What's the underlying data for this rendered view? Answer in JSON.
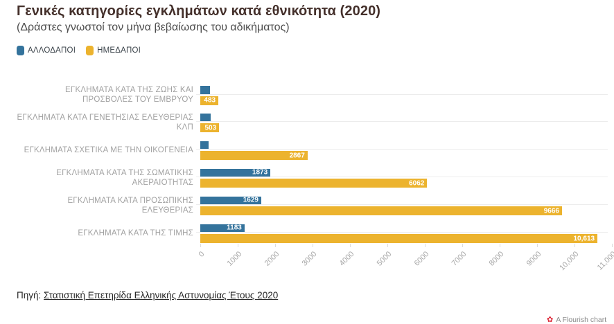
{
  "header": {
    "title": "Γενικές κατηγορίες εγκλημάτων κατά εθνικότητα (2020)",
    "subtitle": "(Δράστες γνωστοί τον μήνα βεβαίωσης του αδικήματος)"
  },
  "legend": [
    {
      "label": "ΑΛΛΟΔΑΠΟΙ",
      "color": "#34739c"
    },
    {
      "label": "ΗΜΕΔΑΠΟΙ",
      "color": "#ecb32e"
    }
  ],
  "chart_data": {
    "type": "bar",
    "orientation": "horizontal",
    "title": "Γενικές κατηγορίες εγκλημάτων κατά εθνικότητα (2020)",
    "subtitle": "(Δράστες γνωστοί τον μήνα βεβαίωσης του αδικήματος)",
    "categories": [
      "ΕΓΚΛΗΜΑΤΑ ΚΑΤΑ ΤΗΣ ΖΩΗΣ ΚΑΙ ΠΡΟΣΒΟΛΕΣ ΤΟΥ ΕΜΒΡΥΟΥ",
      "ΕΓΚΛΗΜΑΤΑ ΚΑΤΑ ΓΕΝΕΤΗΣΙΑΣ ΕΛΕΥΘΕΡΙΑΣ ΚΛΠ",
      "ΕΓΚΛΗΜΑΤΑ ΣΧΕΤΙΚΑ ΜΕ ΤΗΝ ΟΙΚΟΓΕΝΕΙΑ",
      "ΕΓΚΛΗΜΑΤΑ ΚΑΤΑ ΤΗΣ ΣΩΜΑΤΙΚΗΣ ΑΚΕΡΑΙΟΤΗΤΑΣ",
      "ΕΓΚΛΗΜΑΤΑ ΚΑΤΑ ΠΡΟΣΩΠΙΚΗΣ ΕΛΕΥΘΕΡΙΑΣ",
      "ΕΓΚΛΗΜΑΤΑ ΚΑΤΑ ΤΗΣ ΤΙΜΗΣ"
    ],
    "series": [
      {
        "name": "ΑΛΛΟΔΑΠΟΙ",
        "color": "#34739c",
        "values": [
          250,
          270,
          215,
          1873,
          1629,
          1183
        ],
        "labels": [
          "",
          "",
          "",
          "1873",
          "1629",
          "1183"
        ],
        "estimated": [
          true,
          true,
          true,
          false,
          false,
          false
        ]
      },
      {
        "name": "ΗΜΕΔΑΠΟΙ",
        "color": "#ecb32e",
        "values": [
          483,
          503,
          2867,
          6062,
          9666,
          10613
        ],
        "labels": [
          "483",
          "503",
          "2867",
          "6062",
          "9666",
          "10,613"
        ],
        "estimated": [
          false,
          false,
          false,
          false,
          false,
          false
        ]
      }
    ],
    "x_ticks": [
      "0",
      "1000",
      "2000",
      "3000",
      "4000",
      "5000",
      "6000",
      "7000",
      "8000",
      "9000",
      "10,000",
      "11,000"
    ],
    "xlim": [
      0,
      11000
    ],
    "legend_position": "top-left",
    "grid": "row-lines-only",
    "note": "First three ΑΛΛΟΔΑΠΟΙ values estimated from bar length; value labels not shown in image"
  },
  "source": {
    "prefix": "Πηγή:",
    "link_text": "Στατιστική Επετηρίδα Ελληνικής Αστυνομίας Έτους 2020"
  },
  "attribution": {
    "label": "A Flourish chart",
    "flower_icon": "✿"
  },
  "colors": {
    "title": "#44302b",
    "subtitle": "#4c4c4c",
    "category_label": "#a2a2a2",
    "axis_label": "#a8a8a8",
    "row_line": "#ececec",
    "bar_value_label": "#ffffff",
    "background": "#ffffff"
  }
}
